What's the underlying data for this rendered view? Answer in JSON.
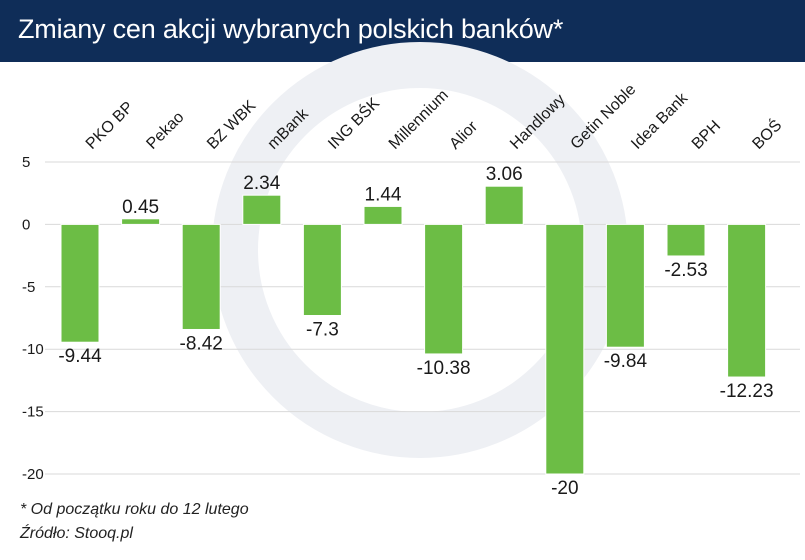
{
  "header": {
    "title": "Zmiany cen akcji wybranych polskich banków*"
  },
  "footer": {
    "note": "* Od początku roku do 12 lutego",
    "source": "Źródło: Stooq.pl"
  },
  "colors": {
    "header_bg": "#0f2d58",
    "bar": "#6cbd45",
    "bar_stroke": "#ffffff",
    "grid": "#d9d9d9",
    "text": "#1a1a1a",
    "watermark": "#eef0f4"
  },
  "chart_data": {
    "type": "bar",
    "title": "Zmiany cen akcji wybranych polskich banków*",
    "xlabel": "",
    "ylabel": "",
    "ylim": [
      -20,
      5
    ],
    "yticks": [
      5,
      0,
      -5,
      -10,
      -15,
      -20
    ],
    "ytick_labels": [
      "5",
      "0",
      "-5",
      "-10",
      "-15",
      "-20"
    ],
    "grid": true,
    "categories": [
      "PKO BP",
      "Pekao",
      "BZ WBK",
      "mBank",
      "ING BŚK",
      "Millennium",
      "Alior",
      "Handlowy",
      "Getin Noble",
      "Idea Bank",
      "BPH",
      "BOŚ"
    ],
    "values": [
      -9.44,
      0.45,
      -8.42,
      2.34,
      -7.3,
      1.44,
      -10.38,
      3.06,
      -20,
      -9.84,
      -2.53,
      -12.23
    ],
    "value_labels": [
      "-9.44",
      "0.45",
      "-8.42",
      "2.34",
      "-7.3",
      "1.44",
      "-10.38",
      "3.06",
      "-20",
      "-9.84",
      "-2.53",
      "-12.23"
    ]
  }
}
